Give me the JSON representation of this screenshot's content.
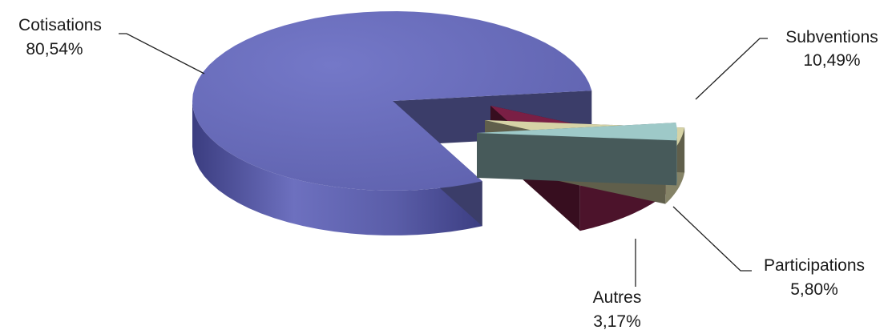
{
  "chart_data": {
    "type": "pie",
    "style": "3d-exploded",
    "title": "",
    "slices": [
      {
        "name": "Cotisations",
        "value": 80.54,
        "label": "80,54%",
        "color": "#6b6fbe"
      },
      {
        "name": "Subventions",
        "value": 10.49,
        "label": "10,49%",
        "color": "#7a1f45"
      },
      {
        "name": "Participations",
        "value": 5.8,
        "label": "5,80%",
        "color": "#d6d3a6"
      },
      {
        "name": "Autres",
        "value": 3.17,
        "label": "3,17%",
        "color": "#9ec9c8"
      }
    ]
  }
}
